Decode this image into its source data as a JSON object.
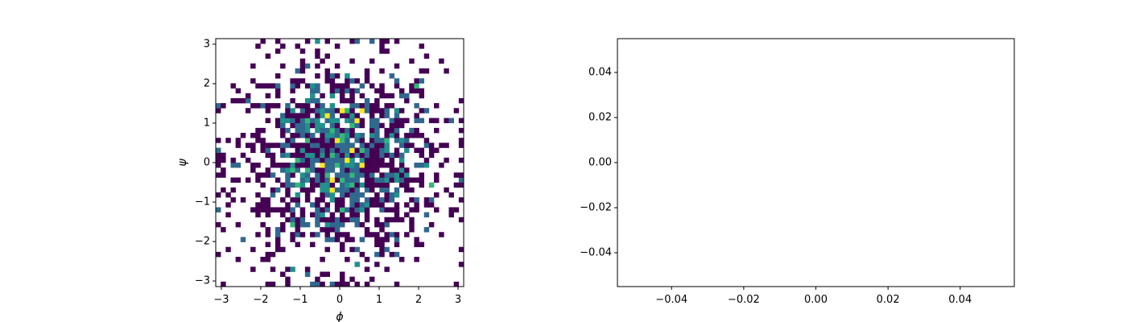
{
  "figure": {
    "background": "#ffffff"
  },
  "chart_data": [
    {
      "type": "heatmap",
      "title": "",
      "xlabel": "ϕ",
      "ylabel": "ψ",
      "xlim": [
        -3.14159,
        3.14159
      ],
      "ylim": [
        -3.14159,
        3.14159
      ],
      "xticks": [
        -3,
        -2,
        -1,
        0,
        1,
        2,
        3
      ],
      "yticks": [
        -3,
        -2,
        -1,
        0,
        1,
        2,
        3
      ],
      "xtick_labels": [
        "−3",
        "−2",
        "−1",
        "0",
        "1",
        "2",
        "3"
      ],
      "ytick_labels": [
        "−3",
        "−2",
        "−1",
        "0",
        "1",
        "2",
        "3"
      ],
      "bins": [
        50,
        50
      ],
      "colormap": "viridis",
      "colormap_stops": [
        "#440154",
        "#31688e",
        "#21918c",
        "#35b779",
        "#fde725"
      ],
      "empty_color": "#ffffff",
      "count_range": [
        1,
        5
      ],
      "counts_note_free": true,
      "grid": false,
      "legend": "none"
    },
    {
      "type": "scatter",
      "title": "",
      "xlabel": "",
      "ylabel": "",
      "x": [],
      "y": [],
      "xlim": [
        -0.055,
        0.055
      ],
      "ylim": [
        -0.055,
        0.055
      ],
      "xticks": [
        -0.04,
        -0.02,
        0.0,
        0.02,
        0.04
      ],
      "yticks": [
        -0.04,
        -0.02,
        0.0,
        0.02,
        0.04
      ],
      "xtick_labels": [
        "−0.04",
        "−0.02",
        "0.00",
        "0.02",
        "0.04"
      ],
      "ytick_labels": [
        "−0.04",
        "−0.02",
        "0.00",
        "0.02",
        "0.04"
      ],
      "grid": false,
      "legend": "none"
    }
  ]
}
